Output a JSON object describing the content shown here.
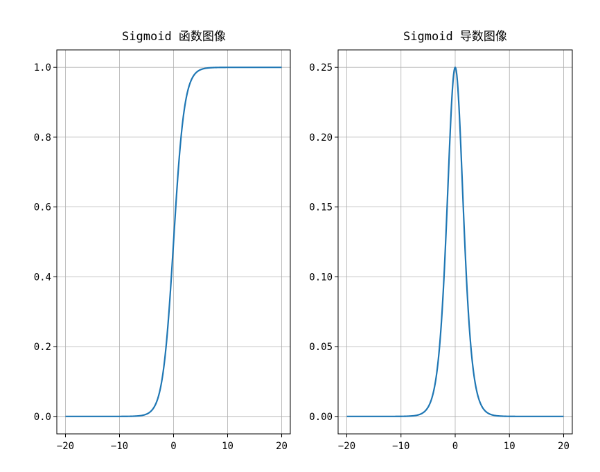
{
  "chart_data": [
    {
      "type": "line",
      "title": "Sigmoid 函数图像",
      "function": "sigmoid",
      "x_range": [
        -20,
        20
      ],
      "xlim": [
        -21.6,
        21.6
      ],
      "ylim": [
        -0.05,
        1.05
      ],
      "xticks": [
        -20,
        -10,
        0,
        10,
        20
      ],
      "xtick_labels": [
        "−20",
        "−10",
        "0",
        "10",
        "20"
      ],
      "yticks": [
        0.0,
        0.2,
        0.4,
        0.6,
        0.8,
        1.0
      ],
      "ytick_labels": [
        "0.0",
        "0.2",
        "0.4",
        "0.6",
        "0.8",
        "1.0"
      ],
      "grid": true,
      "line_color": "#1f77b4",
      "x": [
        -20,
        -10,
        -6,
        -4,
        -2,
        -1,
        0,
        1,
        2,
        4,
        6,
        10,
        20
      ],
      "y": [
        0.0,
        5e-05,
        0.0025,
        0.018,
        0.119,
        0.269,
        0.5,
        0.731,
        0.881,
        0.982,
        0.9975,
        0.99995,
        1.0
      ]
    },
    {
      "type": "line",
      "title": "Sigmoid 导数图像",
      "function": "sigmoid_derivative",
      "x_range": [
        -20,
        20
      ],
      "xlim": [
        -21.6,
        21.6
      ],
      "ylim": [
        -0.0125,
        0.2625
      ],
      "xticks": [
        -20,
        -10,
        0,
        10,
        20
      ],
      "xtick_labels": [
        "−20",
        "−10",
        "0",
        "10",
        "20"
      ],
      "yticks": [
        0.0,
        0.05,
        0.1,
        0.15,
        0.2,
        0.25
      ],
      "ytick_labels": [
        "0.00",
        "0.05",
        "0.10",
        "0.15",
        "0.20",
        "0.25"
      ],
      "grid": true,
      "line_color": "#1f77b4",
      "x": [
        -20,
        -10,
        -6,
        -4,
        -2,
        -1,
        0,
        1,
        2,
        4,
        6,
        10,
        20
      ],
      "y": [
        0.0,
        5e-05,
        0.0025,
        0.0177,
        0.105,
        0.197,
        0.25,
        0.197,
        0.105,
        0.0177,
        0.0025,
        5e-05,
        0.0
      ]
    }
  ]
}
